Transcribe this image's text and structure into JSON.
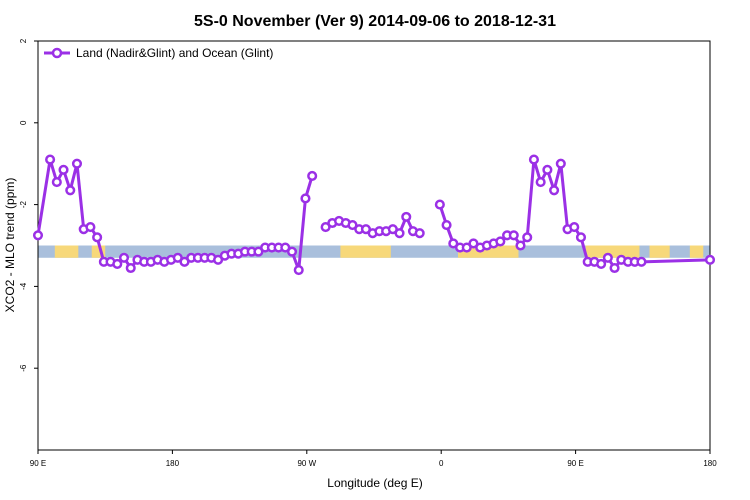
{
  "colors": {
    "series": "#9b30e6",
    "ocean_band": "#a9bfdc",
    "land_band": "#f7d87a",
    "frame": "#000000"
  },
  "chart_data": {
    "type": "line",
    "title": "5S-0 November (Ver 9)   2014-09-06 to 2018-12-31",
    "xlabel": "Longitude (deg E)",
    "ylabel": "XCO2 - MLO trend (ppm)",
    "xlim": [
      0,
      100
    ],
    "ylim": [
      -8,
      2
    ],
    "grid": false,
    "legend_position": "top-left",
    "x_ticks": [
      {
        "pos": 0,
        "label": "90 E"
      },
      {
        "pos": 20,
        "label": "180"
      },
      {
        "pos": 40,
        "label": "90 W"
      },
      {
        "pos": 60,
        "label": "0"
      },
      {
        "pos": 80,
        "label": "90 E"
      },
      {
        "pos": 100,
        "label": "180"
      }
    ],
    "y_ticks": [
      {
        "value": 2,
        "label": "2"
      },
      {
        "value": 0,
        "label": "0"
      },
      {
        "value": -2,
        "label": "-2"
      },
      {
        "value": -4,
        "label": "-4"
      },
      {
        "value": -6,
        "label": "-6"
      }
    ],
    "band": {
      "y_top": -3.0,
      "y_bottom": -3.3
    },
    "land_segments": [
      [
        2.5,
        6
      ],
      [
        8,
        10
      ],
      [
        45,
        52.5
      ],
      [
        62.5,
        71.5
      ],
      [
        81.5,
        89.5
      ],
      [
        91,
        94
      ],
      [
        97,
        99
      ]
    ],
    "series": [
      {
        "name": "Land (Nadir&Glint) and Ocean (Glint)",
        "segments": [
          [
            [
              0,
              -2.75
            ],
            [
              1.8,
              -0.9
            ],
            [
              2.8,
              -1.45
            ],
            [
              3.8,
              -1.15
            ],
            [
              4.8,
              -1.65
            ],
            [
              5.8,
              -1.0
            ],
            [
              6.8,
              -2.6
            ],
            [
              7.8,
              -2.55
            ],
            [
              8.8,
              -2.8
            ],
            [
              9.8,
              -3.4
            ],
            [
              10.8,
              -3.4
            ],
            [
              11.8,
              -3.45
            ],
            [
              12.8,
              -3.3
            ],
            [
              13.8,
              -3.55
            ],
            [
              14.8,
              -3.35
            ],
            [
              15.8,
              -3.4
            ],
            [
              16.8,
              -3.4
            ],
            [
              17.8,
              -3.35
            ],
            [
              18.8,
              -3.4
            ],
            [
              19.8,
              -3.35
            ],
            [
              20.8,
              -3.3
            ],
            [
              21.8,
              -3.4
            ],
            [
              22.8,
              -3.3
            ],
            [
              23.8,
              -3.3
            ],
            [
              24.8,
              -3.3
            ],
            [
              25.8,
              -3.3
            ],
            [
              26.8,
              -3.35
            ],
            [
              27.8,
              -3.25
            ],
            [
              28.8,
              -3.2
            ],
            [
              29.8,
              -3.2
            ],
            [
              30.8,
              -3.15
            ],
            [
              31.8,
              -3.15
            ],
            [
              32.8,
              -3.15
            ],
            [
              33.8,
              -3.05
            ],
            [
              34.8,
              -3.05
            ],
            [
              35.8,
              -3.05
            ],
            [
              36.8,
              -3.05
            ],
            [
              37.8,
              -3.15
            ],
            [
              38.8,
              -3.6
            ],
            [
              39.8,
              -1.85
            ],
            [
              40.8,
              -1.3
            ]
          ],
          [
            [
              42.8,
              -2.55
            ],
            [
              43.8,
              -2.45
            ],
            [
              44.8,
              -2.4
            ],
            [
              45.8,
              -2.45
            ],
            [
              46.8,
              -2.5
            ],
            [
              47.8,
              -2.6
            ],
            [
              48.8,
              -2.6
            ],
            [
              49.8,
              -2.7
            ],
            [
              50.8,
              -2.65
            ],
            [
              51.8,
              -2.65
            ],
            [
              52.8,
              -2.6
            ],
            [
              53.8,
              -2.7
            ],
            [
              54.8,
              -2.3
            ],
            [
              55.8,
              -2.65
            ],
            [
              56.8,
              -2.7
            ]
          ],
          [
            [
              59.8,
              -2.0
            ],
            [
              60.8,
              -2.5
            ],
            [
              61.8,
              -2.95
            ],
            [
              62.8,
              -3.05
            ],
            [
              63.8,
              -3.05
            ],
            [
              64.8,
              -2.95
            ],
            [
              65.8,
              -3.05
            ],
            [
              66.8,
              -3.0
            ],
            [
              67.8,
              -2.95
            ],
            [
              68.8,
              -2.9
            ],
            [
              69.8,
              -2.75
            ],
            [
              70.8,
              -2.75
            ],
            [
              71.8,
              -3.0
            ],
            [
              72.8,
              -2.8
            ],
            [
              73.8,
              -0.9
            ],
            [
              74.8,
              -1.45
            ],
            [
              75.8,
              -1.15
            ],
            [
              76.8,
              -1.65
            ],
            [
              77.8,
              -1.0
            ],
            [
              78.8,
              -2.6
            ],
            [
              79.8,
              -2.55
            ],
            [
              80.8,
              -2.8
            ],
            [
              81.8,
              -3.4
            ],
            [
              82.8,
              -3.4
            ],
            [
              83.8,
              -3.45
            ],
            [
              84.8,
              -3.3
            ],
            [
              85.8,
              -3.55
            ],
            [
              86.8,
              -3.35
            ],
            [
              87.8,
              -3.4
            ],
            [
              88.8,
              -3.4
            ],
            [
              89.8,
              -3.4
            ],
            [
              100,
              -3.35
            ]
          ]
        ]
      }
    ]
  }
}
